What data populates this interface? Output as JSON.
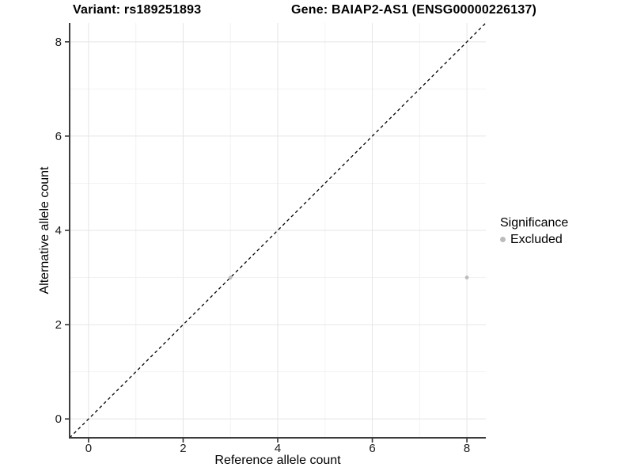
{
  "chart_data": {
    "type": "scatter",
    "title_left": "Variant: rs189251893",
    "title_right": "Gene: BAIAP2-AS1 (ENSG00000226137)",
    "xlabel": "Reference allele count",
    "ylabel": "Alternative allele count",
    "xlim": [
      -0.4,
      8.4
    ],
    "ylim": [
      -0.4,
      8.4
    ],
    "x_ticks": [
      0,
      2,
      4,
      6,
      8
    ],
    "y_ticks": [
      0,
      2,
      4,
      6,
      8
    ],
    "x_tick_labels": [
      "0",
      "2",
      "4",
      "6",
      "8"
    ],
    "y_tick_labels": [
      "0",
      "2",
      "4",
      "6",
      "8"
    ],
    "x_minor_ticks": [
      1,
      3,
      5,
      7
    ],
    "y_minor_ticks": [
      1,
      3,
      5,
      7
    ],
    "grid": true,
    "series": [
      {
        "name": "Excluded",
        "color": "#bcbcbc",
        "points": [
          {
            "x": 3,
            "y": 3
          },
          {
            "x": 8,
            "y": 3
          }
        ]
      }
    ],
    "reference_line": {
      "slope": 1,
      "intercept": 0,
      "style": "dashed",
      "color": "#000000"
    },
    "legend": {
      "title": "Significance",
      "position": "right",
      "entries": [
        {
          "label": "Excluded",
          "color": "#bcbcbc"
        }
      ]
    },
    "colors": {
      "background": "#ffffff",
      "grid_major": "#e5e5e5",
      "grid_minor": "#f2f2f2",
      "axis_line": "#3c3c3c",
      "tick_mark": "#333333",
      "text": "#000000"
    }
  }
}
